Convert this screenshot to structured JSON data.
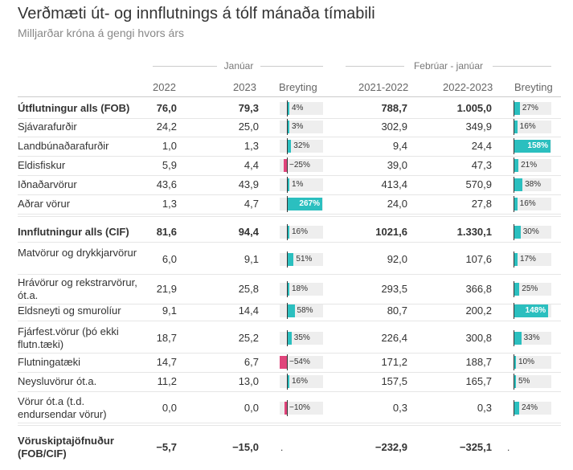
{
  "header": {
    "title": "Verðmæti út- og innflutnings á tólf mánaða tímabili",
    "subtitle": "Milljarðar króna á gengi hvors árs"
  },
  "groups": {
    "left": "Janúar",
    "right": "Febrúar - janúar"
  },
  "columns": {
    "c1": "2022",
    "c2": "2023",
    "c3": "Breyting",
    "c4": "2021-2022",
    "c5": "2022-2023",
    "c6": "Breyting"
  },
  "colors": {
    "positive": "#2bbfbf",
    "negative": "#e0457b",
    "track": "#eeeeee"
  },
  "chart_data": {
    "type": "table",
    "columns": [
      "2022",
      "2023",
      "Breyting",
      "2021-2022",
      "2022-2023",
      "Breyting"
    ],
    "rows": [
      {
        "label": "Útflutningur alls (FOB)",
        "bold": true,
        "v1": "76,0",
        "v2": "79,3",
        "c1": 4,
        "c1_label": "4%",
        "v3": "788,7",
        "v4": "1.005,0",
        "c2": 27,
        "c2_label": "27%"
      },
      {
        "label": "Sjávarafurðir",
        "v1": "24,2",
        "v2": "25,0",
        "c1": 3,
        "c1_label": "3%",
        "v3": "302,9",
        "v4": "349,9",
        "c2": 16,
        "c2_label": "16%"
      },
      {
        "label": "Landbúnaðarafurðir",
        "v1": "1,0",
        "v2": "1,3",
        "c1": 32,
        "c1_label": "32%",
        "v3": "9,4",
        "v4": "24,4",
        "c2": 158,
        "c2_label": "158%"
      },
      {
        "label": "Eldisfiskur",
        "v1": "5,9",
        "v2": "4,4",
        "c1": -25,
        "c1_label": "−25%",
        "v3": "39,0",
        "v4": "47,3",
        "c2": 21,
        "c2_label": "21%"
      },
      {
        "label": "Iðnaðarvörur",
        "v1": "43,6",
        "v2": "43,9",
        "c1": 1,
        "c1_label": "1%",
        "v3": "413,4",
        "v4": "570,9",
        "c2": 38,
        "c2_label": "38%"
      },
      {
        "label": "Aðrar vörur",
        "v1": "1,3",
        "v2": "4,7",
        "c1": 267,
        "c1_label": "267%",
        "v3": "24,0",
        "v4": "27,8",
        "c2": 16,
        "c2_label": "16%"
      },
      {
        "label": "Innflutningur alls (CIF)",
        "bold": true,
        "v1": "81,6",
        "v2": "94,4",
        "c1": 16,
        "c1_label": "16%",
        "v3": "1021,6",
        "v4": "1.330,1",
        "c2": 30,
        "c2_label": "30%"
      },
      {
        "label": "Matvörur og drykkjarvörur",
        "v1": "6,0",
        "v2": "9,1",
        "c1": 51,
        "c1_label": "51%",
        "v3": "92,0",
        "v4": "107,6",
        "c2": 17,
        "c2_label": "17%"
      },
      {
        "label": "Hrávörur og rekstrarvörur, ót.a.",
        "v1": "21,9",
        "v2": "25,8",
        "c1": 18,
        "c1_label": "18%",
        "v3": "293,5",
        "v4": "366,8",
        "c2": 25,
        "c2_label": "25%"
      },
      {
        "label": "Eldsneyti og smurolíur",
        "v1": "9,1",
        "v2": "14,4",
        "c1": 58,
        "c1_label": "58%",
        "v3": "80,7",
        "v4": "200,2",
        "c2": 148,
        "c2_label": "148%"
      },
      {
        "label": "Fjárfest.vörur (þó ekki flutn.tæki)",
        "v1": "18,7",
        "v2": "25,2",
        "c1": 35,
        "c1_label": "35%",
        "v3": "226,4",
        "v4": "300,8",
        "c2": 33,
        "c2_label": "33%"
      },
      {
        "label": "Flutningatæki",
        "v1": "14,7",
        "v2": "6,7",
        "c1": -54,
        "c1_label": "−54%",
        "v3": "171,2",
        "v4": "188,7",
        "c2": 10,
        "c2_label": "10%"
      },
      {
        "label": "Neysluvörur ót.a.",
        "v1": "11,2",
        "v2": "13,0",
        "c1": 16,
        "c1_label": "16%",
        "v3": "157,5",
        "v4": "165,7",
        "c2": 5,
        "c2_label": "5%"
      },
      {
        "label": "Vörur ót.a (t.d. endursendar vörur)",
        "v1": "0,0",
        "v2": "0,0",
        "c1": -10,
        "c1_label": "−10%",
        "v3": "0,3",
        "v4": "0,3",
        "c2": 24,
        "c2_label": "24%"
      },
      {
        "label": "Vöruskiptajöfnuður (FOB/CIF)",
        "bold": true,
        "v1": "−5,7",
        "v2": "−15,0",
        "c1": null,
        "c1_label": ".",
        "v3": "−232,9",
        "v4": "−325,1",
        "c2": null,
        "c2_label": "."
      }
    ]
  }
}
